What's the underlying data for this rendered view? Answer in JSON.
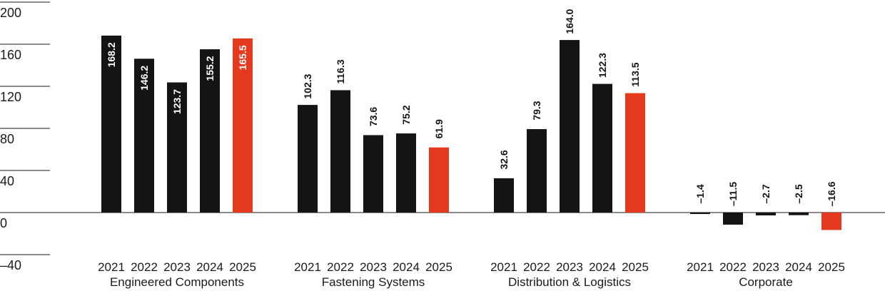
{
  "chart_data": {
    "type": "bar",
    "title": "",
    "xlabel": "",
    "ylabel": "",
    "ylim": [
      -40,
      200
    ],
    "yticks": [
      200,
      160,
      120,
      80,
      40,
      0,
      -40
    ],
    "ytick_labels": [
      "200",
      "160",
      "120",
      "80",
      "40",
      "0",
      "–40"
    ],
    "years": [
      "2021",
      "2022",
      "2023",
      "2024",
      "2025"
    ],
    "groups": [
      {
        "name": "Engineered Components",
        "values": [
          168.2,
          146.2,
          123.7,
          155.2,
          165.5
        ],
        "value_labels": [
          "168.2",
          "146.2",
          "123.7",
          "155.2",
          "165.5"
        ]
      },
      {
        "name": "Fastening Systems",
        "values": [
          102.3,
          116.3,
          73.6,
          75.2,
          61.9
        ],
        "value_labels": [
          "102.3",
          "116.3",
          "73.6",
          "75.2",
          "61.9"
        ]
      },
      {
        "name": "Distribution & Logistics",
        "values": [
          32.6,
          79.3,
          164.0,
          122.3,
          113.5
        ],
        "value_labels": [
          "32.6",
          "79.3",
          "164.0",
          "122.3",
          "113.5"
        ]
      },
      {
        "name": "Corporate",
        "values": [
          -1.4,
          -11.5,
          -2.7,
          -2.5,
          -16.6
        ],
        "value_labels": [
          "–1.4",
          "–11.5",
          "–2.7",
          "–2.5",
          "–16.6"
        ]
      }
    ],
    "colors": {
      "default": "#141414",
      "highlight": "#e63a1f",
      "axis": "#1a1a1a"
    },
    "highlight_year": "2025",
    "grid": false
  }
}
